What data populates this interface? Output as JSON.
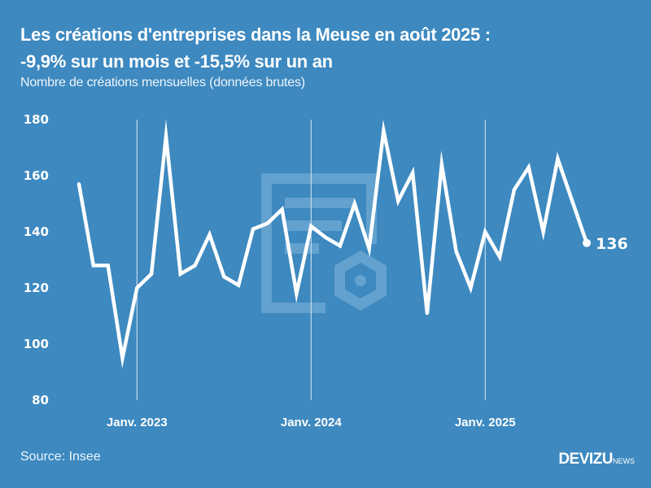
{
  "header": {
    "title_line1": "Les créations d'entreprises dans la Meuse en août 2025 :",
    "title_line2": "-9,9% sur un mois et -15,5% sur un an",
    "subtitle": "Nombre de créations mensuelles (données brutes)"
  },
  "footer": {
    "source": "Source: Insee",
    "logo_main": "DEVIZU",
    "logo_sub": "NEWS"
  },
  "colors": {
    "background": "#3d89c0",
    "line": "#ffffff",
    "gridline": "#dbe9f4",
    "watermark": "#6aa6d1"
  },
  "chart_data": {
    "type": "line",
    "title": "Les créations d'entreprises dans la Meuse en août 2025 : -9,9% sur un mois et -15,5% sur un an",
    "subtitle": "Nombre de créations mensuelles (données brutes)",
    "xlabel": "",
    "ylabel": "",
    "ylim": [
      80,
      180
    ],
    "yticks": [
      "80",
      "100",
      "120",
      "140",
      "160",
      "180"
    ],
    "ytick_values": [
      80,
      100,
      120,
      140,
      160,
      180
    ],
    "xticks": [
      {
        "label": "Janv. 2023",
        "index": 4
      },
      {
        "label": "Janv. 2024",
        "index": 16
      },
      {
        "label": "Janv. 2025",
        "index": 28
      }
    ],
    "grid": "vertical lines at January of each year",
    "x": [
      "2022-09",
      "2022-10",
      "2022-11",
      "2022-12",
      "2023-01",
      "2023-02",
      "2023-03",
      "2023-04",
      "2023-05",
      "2023-06",
      "2023-07",
      "2023-08",
      "2023-09",
      "2023-10",
      "2023-11",
      "2023-12",
      "2024-01",
      "2024-02",
      "2024-03",
      "2024-04",
      "2024-05",
      "2024-06",
      "2024-07",
      "2024-08",
      "2024-09",
      "2024-10",
      "2024-11",
      "2024-12",
      "2025-01",
      "2025-02",
      "2025-03",
      "2025-04",
      "2025-05",
      "2025-06",
      "2025-07",
      "2025-08"
    ],
    "series": [
      {
        "name": "Créations mensuelles",
        "values": [
          157,
          128,
          128,
          95,
          120,
          125,
          174,
          125,
          128,
          139,
          124,
          121,
          141,
          143,
          148,
          118,
          142,
          138,
          135,
          150,
          134,
          176,
          151,
          161,
          111,
          164,
          133,
          120,
          140,
          131,
          155,
          163,
          140,
          166,
          151,
          136
        ]
      }
    ],
    "end_label": "136"
  }
}
